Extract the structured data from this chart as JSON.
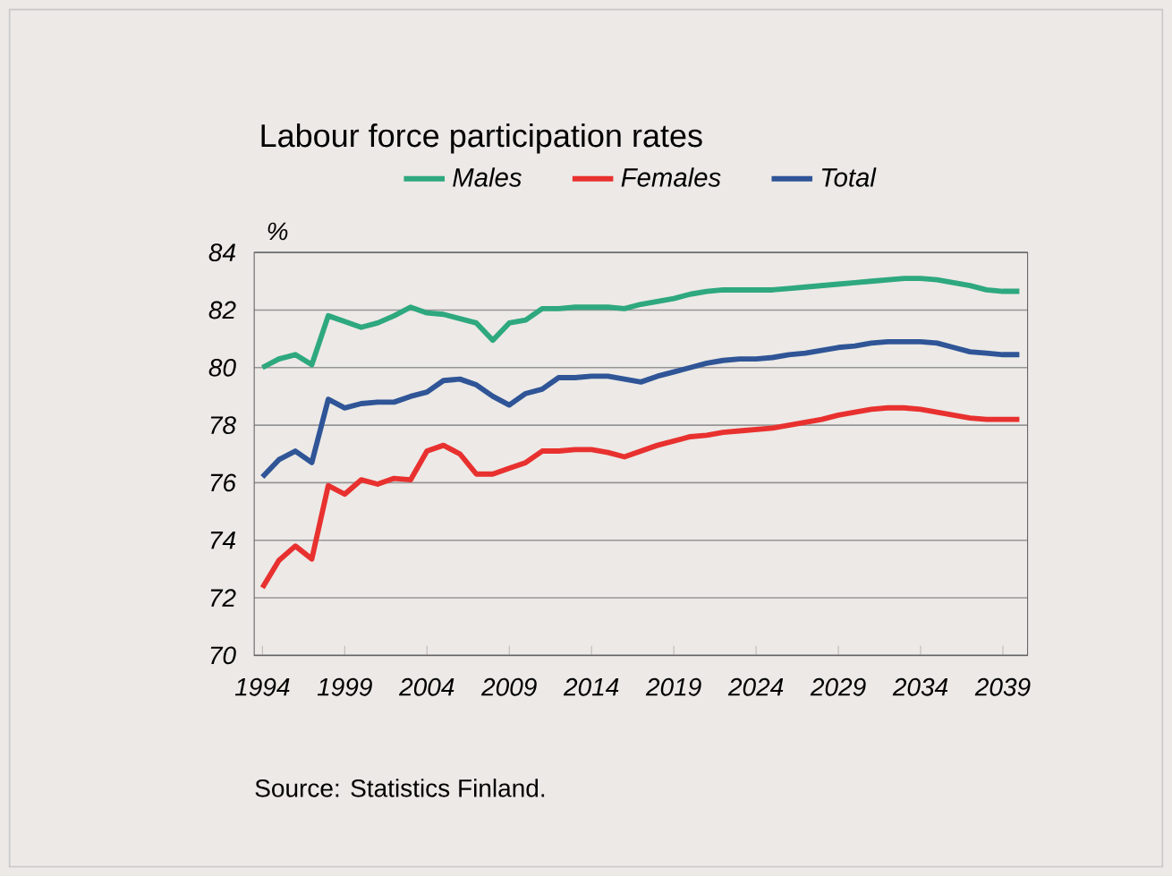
{
  "chart_data": {
    "type": "line",
    "title": "Labour force participation rates",
    "ylabel": "%",
    "x": [
      1994,
      1995,
      1996,
      1997,
      1998,
      1999,
      2000,
      2001,
      2002,
      2003,
      2004,
      2005,
      2006,
      2007,
      2008,
      2009,
      2010,
      2011,
      2012,
      2013,
      2014,
      2015,
      2016,
      2017,
      2018,
      2019,
      2020,
      2021,
      2022,
      2023,
      2024,
      2025,
      2026,
      2027,
      2028,
      2029,
      2030,
      2031,
      2032,
      2033,
      2034,
      2035,
      2036,
      2037,
      2038,
      2039,
      2040
    ],
    "series": [
      {
        "name": "Males",
        "color": "#2ea87e",
        "values": [
          80.0,
          80.3,
          80.45,
          80.1,
          81.8,
          81.6,
          81.4,
          81.55,
          81.8,
          82.1,
          81.9,
          81.85,
          81.7,
          81.55,
          80.95,
          81.55,
          81.65,
          82.05,
          82.05,
          82.1,
          82.1,
          82.1,
          82.05,
          82.2,
          82.3,
          82.4,
          82.55,
          82.65,
          82.7,
          82.7,
          82.7,
          82.7,
          82.75,
          82.8,
          82.85,
          82.9,
          82.95,
          83.0,
          83.05,
          83.1,
          83.1,
          83.05,
          82.95,
          82.85,
          82.7,
          82.65,
          82.65
        ]
      },
      {
        "name": "Females",
        "color": "#e8312f",
        "values": [
          72.35,
          73.3,
          73.8,
          73.35,
          75.9,
          75.6,
          76.1,
          75.95,
          76.15,
          76.1,
          77.1,
          77.3,
          77.0,
          76.3,
          76.3,
          76.5,
          76.7,
          77.1,
          77.1,
          77.15,
          77.15,
          77.05,
          76.9,
          77.1,
          77.3,
          77.45,
          77.6,
          77.65,
          77.75,
          77.8,
          77.85,
          77.9,
          78.0,
          78.1,
          78.2,
          78.35,
          78.45,
          78.55,
          78.6,
          78.6,
          78.55,
          78.45,
          78.35,
          78.25,
          78.2,
          78.2,
          78.2
        ]
      },
      {
        "name": "Total",
        "color": "#2f5597",
        "values": [
          76.2,
          76.8,
          77.1,
          76.7,
          78.9,
          78.6,
          78.75,
          78.8,
          78.8,
          79.0,
          79.15,
          79.55,
          79.6,
          79.4,
          79.0,
          78.7,
          79.1,
          79.25,
          79.65,
          79.65,
          79.7,
          79.7,
          79.6,
          79.5,
          79.7,
          79.85,
          80.0,
          80.15,
          80.25,
          80.3,
          80.3,
          80.35,
          80.45,
          80.5,
          80.6,
          80.7,
          80.75,
          80.85,
          80.9,
          80.9,
          80.9,
          80.85,
          80.7,
          80.55,
          80.5,
          80.45,
          80.45
        ]
      }
    ],
    "xlim": [
      1993.5,
      2040.5
    ],
    "ylim": [
      70,
      84
    ],
    "xticks": [
      1994,
      1999,
      2004,
      2009,
      2014,
      2019,
      2024,
      2029,
      2034,
      2039
    ],
    "yticks": [
      70,
      72,
      74,
      76,
      78,
      80,
      82,
      84
    ],
    "grid": "y",
    "legend": "top",
    "marker": "none",
    "line_style": "solid",
    "annotations": [
      "Source: Statistics Finland."
    ]
  }
}
